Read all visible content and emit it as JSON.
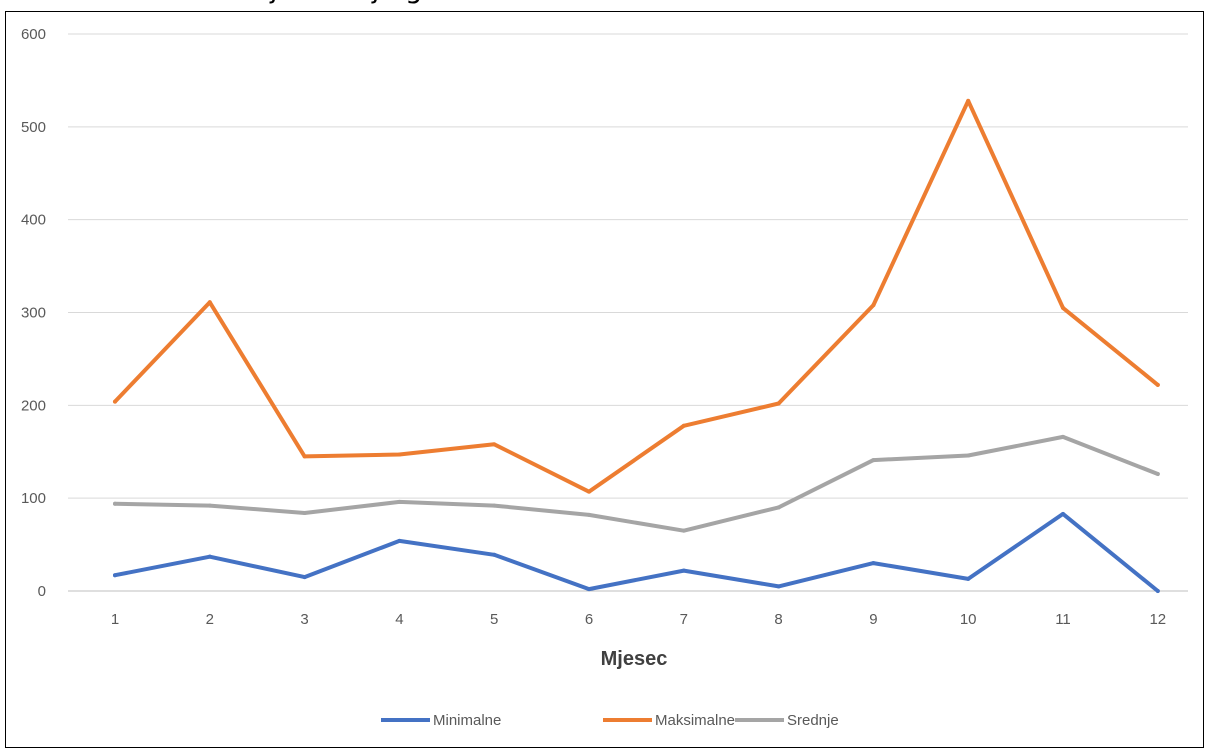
{
  "chart_data": {
    "type": "line",
    "title": "",
    "xlabel": "Mjesec",
    "ylabel": "",
    "x": [
      1,
      2,
      3,
      4,
      5,
      6,
      7,
      8,
      9,
      10,
      11,
      12
    ],
    "ylim": [
      0,
      600
    ],
    "yticks": [
      0,
      100,
      200,
      300,
      400,
      500,
      600
    ],
    "grid": true,
    "legend": "bottom",
    "series": [
      {
        "name": "Minimalne",
        "color": "#4472c4",
        "values": [
          17,
          37,
          15,
          54,
          39,
          2,
          22,
          5,
          30,
          13,
          83,
          0
        ]
      },
      {
        "name": "Maksimalne",
        "color": "#ed7d31",
        "values": [
          204,
          311,
          145,
          147,
          158,
          107,
          178,
          202,
          308,
          528,
          305,
          222
        ]
      },
      {
        "name": "Srednje",
        "color": "#a5a5a5",
        "values": [
          94,
          92,
          84,
          96,
          92,
          82,
          65,
          90,
          141,
          146,
          166,
          126
        ]
      }
    ]
  }
}
